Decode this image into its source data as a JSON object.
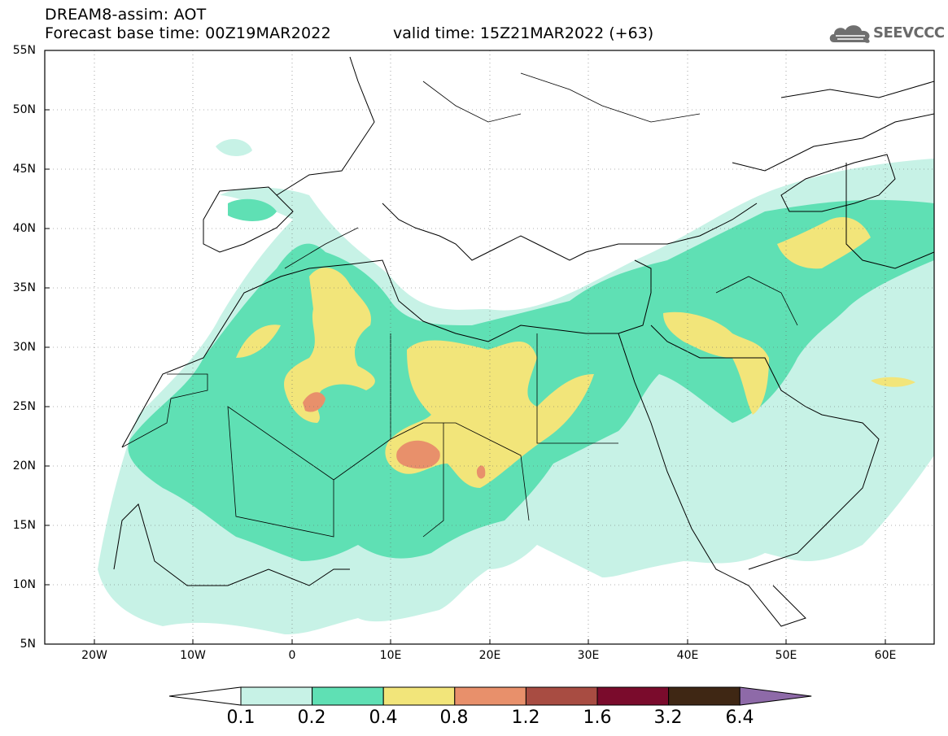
{
  "header": {
    "title": "DREAM8-assim: AOT",
    "base_time": "Forecast base time: 00Z19MAR2022",
    "valid_time": "valid time: 15Z21MAR2022 (+63)"
  },
  "logo": {
    "text": "SEEVCCC",
    "icon": "cloud-icon"
  },
  "map": {
    "latitude_labels": [
      "55N",
      "50N",
      "45N",
      "40N",
      "35N",
      "30N",
      "25N",
      "20N",
      "15N",
      "10N",
      "5N"
    ],
    "longitude_labels": [
      "20W",
      "10W",
      "0",
      "10E",
      "20E",
      "30E",
      "40E",
      "50E",
      "60E"
    ]
  },
  "colorbar": {
    "labels": [
      "0.1",
      "0.2",
      "0.4",
      "0.8",
      "1.2",
      "1.6",
      "3.2",
      "6.4"
    ],
    "colors": [
      "#c7f2e6",
      "#5fe0b4",
      "#f2e57a",
      "#e8906b",
      "#a84c42",
      "#7a0b2c",
      "#3f2714",
      "#8e6aa8"
    ]
  }
}
